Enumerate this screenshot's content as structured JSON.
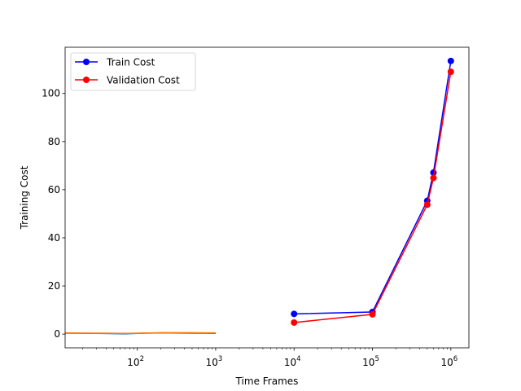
{
  "chart_data": {
    "type": "line",
    "title": "",
    "xlabel": "Time Frames",
    "ylabel": "Training Cost",
    "xscale": "log",
    "xlim": [
      12,
      1700000
    ],
    "ylim": [
      -5.7,
      119.2
    ],
    "xticks": [
      {
        "value": 100,
        "base": "10",
        "exp": "2"
      },
      {
        "value": 1000,
        "base": "10",
        "exp": "3"
      },
      {
        "value": 10000,
        "base": "10",
        "exp": "4"
      },
      {
        "value": 100000,
        "base": "10",
        "exp": "5"
      },
      {
        "value": 1000000,
        "base": "10",
        "exp": "6"
      }
    ],
    "yticks": [
      0,
      20,
      40,
      60,
      80,
      100
    ],
    "grid": false,
    "legend_position": "upper-left",
    "series": [
      {
        "name": "Train Cost",
        "color": "#0000ff",
        "marker": "circle",
        "x": [
          10000,
          100000,
          500000,
          600000,
          1000000
        ],
        "y": [
          8.4,
          9.2,
          55.4,
          67.1,
          113.5
        ]
      },
      {
        "name": "Validation Cost",
        "color": "#ff0000",
        "marker": "circle",
        "x": [
          10000,
          100000,
          500000,
          600000,
          1000000
        ],
        "y": [
          4.8,
          8.2,
          53.8,
          64.9,
          109.0
        ]
      },
      {
        "color": "#1f77b4",
        "marker": "none",
        "x": [
          12,
          30,
          70,
          100,
          200,
          500,
          1000
        ],
        "y": [
          0.4,
          0.3,
          0.1,
          0.3,
          0.5,
          0.4,
          0.3
        ]
      },
      {
        "color": "#ff7f0e",
        "marker": "none",
        "x": [
          12,
          30,
          70,
          100,
          200,
          500,
          1000
        ],
        "y": [
          0.5,
          0.4,
          0.3,
          0.4,
          0.6,
          0.6,
          0.5
        ]
      }
    ]
  }
}
